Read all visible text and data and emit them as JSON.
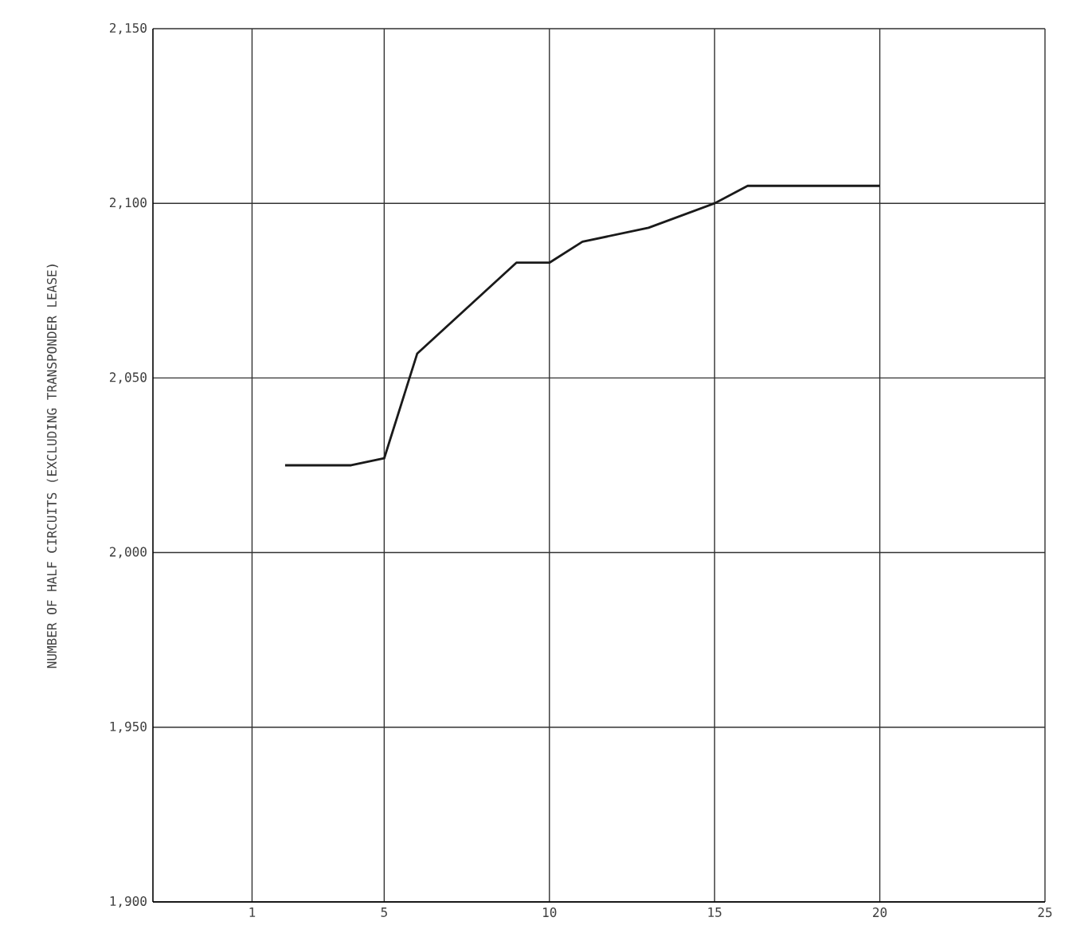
{
  "chart_data": {
    "type": "line",
    "ylabel": "NUMBER OF HALF CIRCUITS (EXCLUDING TRANSPONDER LEASE)",
    "x": [
      2,
      4,
      5,
      6,
      9,
      10,
      11,
      13,
      15,
      16,
      20
    ],
    "series": [
      {
        "color": "#1a1a1a",
        "values": [
          2025,
          2025,
          2027,
          2057,
          2083,
          2083,
          2089,
          2093,
          2100,
          2105,
          2105
        ]
      }
    ],
    "xlim": [
      -2,
      25
    ],
    "xticks": [
      1,
      5,
      10,
      15,
      20,
      25
    ],
    "ylim": [
      1900,
      2150
    ],
    "yticks": [
      {
        "value": 1900,
        "label": "1,900"
      },
      {
        "value": 1950,
        "label": "1,950"
      },
      {
        "value": 2000,
        "label": "2,000"
      },
      {
        "value": 2050,
        "label": "2,050"
      },
      {
        "value": 2100,
        "label": "2,100"
      },
      {
        "value": 2150,
        "label": "2,150"
      }
    ],
    "grid": true,
    "marker": "none",
    "line_style": "solid"
  }
}
